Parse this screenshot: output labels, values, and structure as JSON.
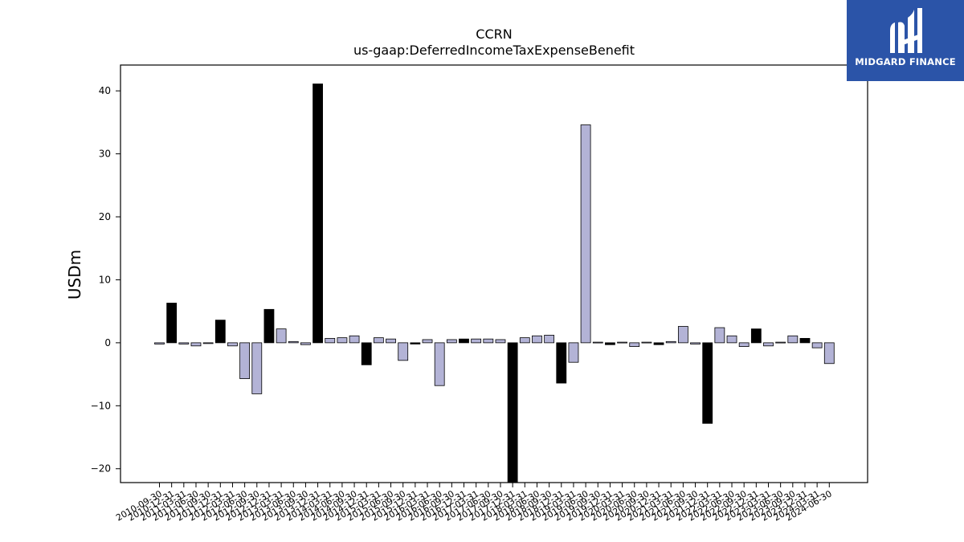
{
  "chart_data": {
    "type": "bar",
    "title": "CCRN",
    "subtitle": "us-gaap:DeferredIncomeTaxExpenseBenefit",
    "xlabel": "",
    "ylabel": "USDm",
    "ylim": [
      -22.2,
      44.1
    ],
    "yticks": [
      -20,
      -10,
      0,
      10,
      20,
      30,
      40
    ],
    "grid": false,
    "categories": [
      "2010-09-30",
      "2010-12-31",
      "2011-03-31",
      "2011-06-30",
      "2011-09-30",
      "2011-12-31",
      "2012-03-31",
      "2012-06-30",
      "2012-09-30",
      "2012-12-31",
      "2013-03-31",
      "2013-06-30",
      "2013-09-30",
      "2013-12-31",
      "2014-03-31",
      "2014-06-30",
      "2014-09-30",
      "2014-12-31",
      "2015-03-31",
      "2015-06-30",
      "2015-09-30",
      "2015-12-31",
      "2016-03-31",
      "2016-06-30",
      "2016-09-30",
      "2016-12-31",
      "2017-03-31",
      "2017-06-30",
      "2017-09-30",
      "2017-12-31",
      "2018-03-31",
      "2018-06-30",
      "2018-09-30",
      "2018-12-31",
      "2019-03-31",
      "2019-06-30",
      "2019-09-30",
      "2019-12-31",
      "2020-03-31",
      "2020-06-30",
      "2020-09-30",
      "2020-12-31",
      "2021-03-31",
      "2021-06-30",
      "2021-09-30",
      "2021-12-31",
      "2022-03-31",
      "2022-06-30",
      "2022-09-30",
      "2022-12-31",
      "2023-03-31",
      "2023-06-30",
      "2023-09-30",
      "2023-12-31",
      "2024-03-31",
      "2024-06-30"
    ],
    "values": [
      -0.2,
      6.3,
      -0.2,
      -0.5,
      -0.1,
      3.6,
      -0.5,
      -5.7,
      -8.1,
      5.3,
      2.2,
      0.2,
      -0.3,
      41.1,
      0.7,
      0.8,
      1.1,
      -3.5,
      0.8,
      0.6,
      -2.8,
      -0.2,
      0.5,
      -6.8,
      0.5,
      0.6,
      0.6,
      0.6,
      0.5,
      -23.0,
      0.8,
      1.1,
      1.2,
      -6.4,
      -3.1,
      34.6,
      0.1,
      -0.3,
      0.1,
      -0.6,
      0.1,
      -0.3,
      0.2,
      2.6,
      -0.2,
      -12.8,
      2.4,
      1.1,
      -0.6,
      2.2,
      -0.5,
      0.1,
      1.1,
      0.7,
      -0.8,
      -3.3
    ],
    "highlight_indices": [
      1,
      5,
      9,
      13,
      17,
      21,
      25,
      29,
      33,
      37,
      41,
      45,
      49,
      53
    ],
    "colors": {
      "bar": "#b3b3d6",
      "highlight": "#000000",
      "edge": "#000000"
    }
  },
  "logo": {
    "text": "MIDGARD FINANCE",
    "icon": "mh-monogram-icon",
    "background": "#2b54a8"
  }
}
